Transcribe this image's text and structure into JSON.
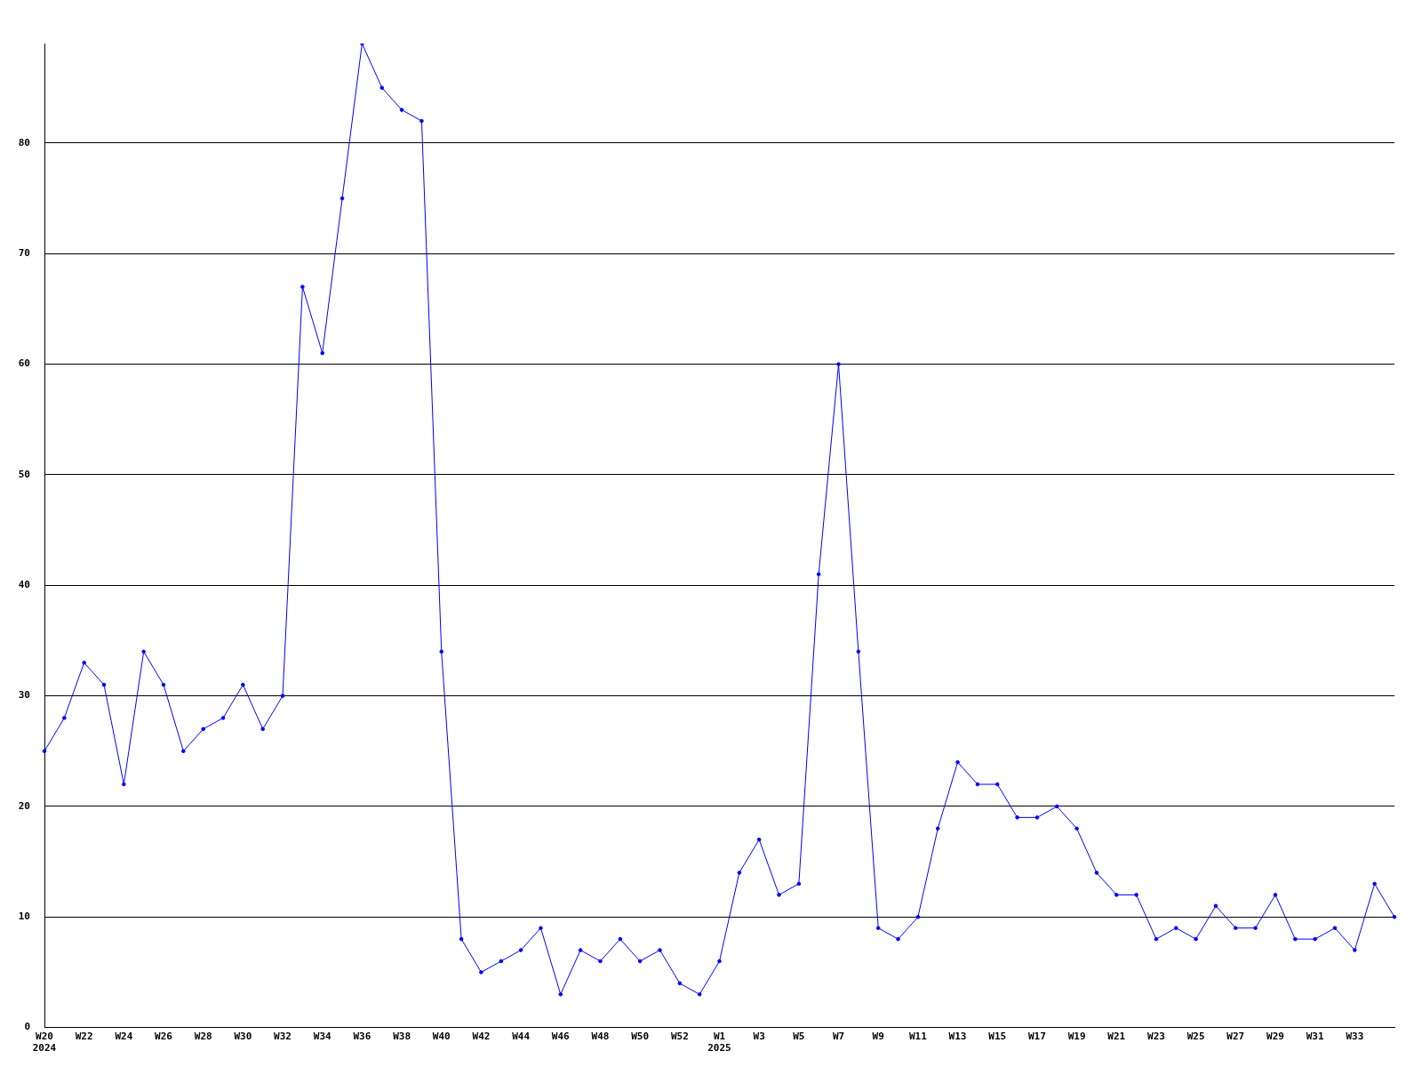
{
  "chart_data": {
    "type": "line",
    "categories": [
      "W20\n2024",
      null,
      "W22",
      null,
      "W24",
      null,
      "W26",
      null,
      "W28",
      null,
      "W30",
      null,
      "W32",
      null,
      "W34",
      null,
      "W36",
      null,
      "W38",
      null,
      "W40",
      null,
      "W42",
      null,
      "W44",
      null,
      "W46",
      null,
      "W48",
      null,
      "W50",
      null,
      "W52",
      null,
      "W1\n2025",
      null,
      "W3",
      null,
      "W5",
      null,
      "W7",
      null,
      "W9",
      null,
      "W11",
      null,
      "W13",
      null,
      "W15",
      null,
      "W17",
      null,
      "W19",
      null,
      "W21",
      null,
      "W23",
      null,
      "W25",
      null,
      "W27",
      null,
      "W29",
      null,
      "W31",
      null,
      "W33",
      null,
      null
    ],
    "series": [
      {
        "color": "#0000ff",
        "values": [
          25,
          28,
          33,
          31,
          22,
          34,
          31,
          25,
          27,
          28,
          31,
          27,
          30,
          67,
          61,
          75,
          89,
          85,
          83,
          82,
          34,
          8,
          5,
          6,
          7,
          9,
          3,
          7,
          6,
          8,
          6,
          7,
          4,
          3,
          6,
          14,
          17,
          12,
          13,
          41,
          60,
          34,
          9,
          8,
          10,
          18,
          24,
          22,
          22,
          19,
          19,
          20,
          18,
          14,
          12,
          12,
          8,
          9,
          8,
          11,
          9,
          9,
          12,
          8,
          8,
          9,
          7,
          13,
          10
        ]
      }
    ],
    "ylim": [
      0,
      89
    ],
    "yticks": [
      0,
      10,
      20,
      30,
      40,
      50,
      60,
      70,
      80
    ],
    "grid": "y",
    "legend": false,
    "marker": "circle",
    "line_style": "solid"
  }
}
